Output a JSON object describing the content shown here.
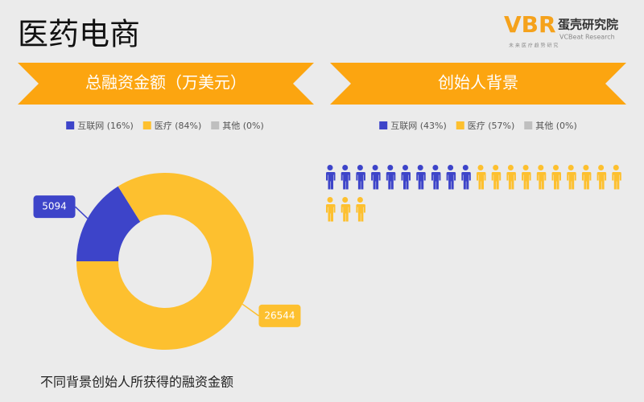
{
  "header": {
    "title": "医药电商",
    "logo": {
      "mark": "VBR",
      "name": "蛋壳研究院",
      "english": "VCBeat Research",
      "slogan": "未 来 医 疗 趋 势 研 究"
    }
  },
  "chart_data": [
    {
      "type": "donut",
      "title": "总融资金额（万美元）",
      "series": [
        {
          "name": "互联网 (16%)",
          "color": "#3d44c9",
          "values": [
            5094
          ]
        },
        {
          "name": "医疗 (84%)",
          "color": "#fdc02f",
          "values": [
            26544
          ]
        },
        {
          "name": "其他 (0%)",
          "color": "#bfbfbf",
          "values": [
            0
          ]
        }
      ]
    },
    {
      "type": "pictograph",
      "title": "创始人背景",
      "series": [
        {
          "name": "互联网 (43%)",
          "color": "#3d44c9",
          "values": [
            10
          ]
        },
        {
          "name": "医疗 (57%)",
          "color": "#fdc02f",
          "values": [
            13
          ]
        },
        {
          "name": "其他 (0%)",
          "color": "#bfbfbf",
          "values": [
            0
          ]
        }
      ]
    }
  ],
  "caption": "不同背景创始人所获得的融资金额"
}
